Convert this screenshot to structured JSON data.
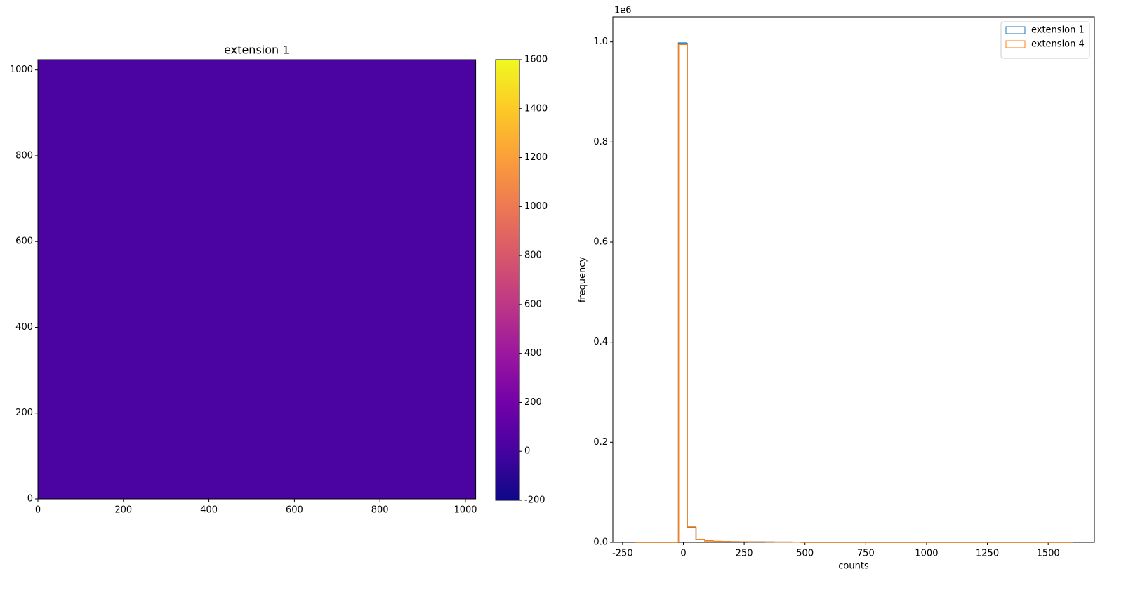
{
  "chart_data": [
    {
      "type": "image",
      "title": "extension 1",
      "xlim": [
        0,
        1024
      ],
      "ylim": [
        0,
        1024
      ],
      "xticks": [
        0,
        200,
        400,
        600,
        800,
        1000
      ],
      "yticks": [
        0,
        200,
        400,
        600,
        800,
        1000
      ],
      "image_color": "#4b03a1",
      "clim": [
        -200,
        1600
      ],
      "cticks": [
        -200,
        0,
        200,
        400,
        600,
        800,
        1000,
        1200,
        1400,
        1600
      ],
      "colormap": [
        "#0d0887",
        "#46039f",
        "#7201a8",
        "#9c179e",
        "#bd3786",
        "#d8576b",
        "#ed7953",
        "#fb9f3a",
        "#fdca26",
        "#f0f921"
      ]
    },
    {
      "type": "histogram",
      "xlabel": "counts",
      "ylabel": "frequency",
      "y_offset_label": "1e6",
      "xlim": [
        -290,
        1690
      ],
      "ylim": [
        0,
        1050000
      ],
      "xticks": [
        -250,
        0,
        250,
        500,
        750,
        1000,
        1250,
        1500
      ],
      "yticks": [
        {
          "value": 0,
          "label": "0.0"
        },
        {
          "value": 200000,
          "label": "0.2"
        },
        {
          "value": 400000,
          "label": "0.4"
        },
        {
          "value": 600000,
          "label": "0.6"
        },
        {
          "value": 800000,
          "label": "0.8"
        },
        {
          "value": 1000000,
          "label": "1.0"
        }
      ],
      "legend": "upper right",
      "bins": [
        -200,
        -164,
        -128,
        -92,
        -56,
        -20,
        16,
        52,
        88,
        124,
        160,
        196,
        232,
        268,
        304,
        340,
        376,
        412,
        448,
        484,
        520,
        556,
        592,
        628,
        664,
        700,
        736,
        772,
        808,
        844,
        880,
        916,
        952,
        988,
        1024,
        1060,
        1096,
        1132,
        1168,
        1204,
        1240,
        1276,
        1312,
        1348,
        1384,
        1420,
        1456,
        1492,
        1528,
        1564,
        1600
      ],
      "series": [
        {
          "name": "extension 1",
          "color": "#1f77b4",
          "values": [
            0,
            0,
            0,
            0,
            0,
            998000,
            30000,
            6000,
            3000,
            2000,
            1500,
            1200,
            1000,
            900,
            800,
            700,
            600,
            500,
            400,
            0,
            0,
            0,
            0,
            0,
            0,
            0,
            0,
            0,
            0,
            0,
            0,
            0,
            0,
            0,
            0,
            0,
            0,
            0,
            0,
            0,
            0,
            0,
            0,
            0,
            0,
            0,
            0,
            0,
            0,
            0
          ]
        },
        {
          "name": "extension 4",
          "color": "#ff7f0e",
          "values": [
            0,
            0,
            0,
            0,
            0,
            995000,
            31000,
            6000,
            3000,
            2000,
            1500,
            1200,
            1000,
            900,
            800,
            700,
            600,
            500,
            400,
            0,
            0,
            0,
            0,
            0,
            0,
            0,
            0,
            0,
            0,
            0,
            0,
            0,
            0,
            0,
            0,
            0,
            0,
            0,
            0,
            0,
            0,
            0,
            0,
            0,
            0,
            0,
            0,
            0,
            0,
            0
          ]
        }
      ]
    }
  ]
}
